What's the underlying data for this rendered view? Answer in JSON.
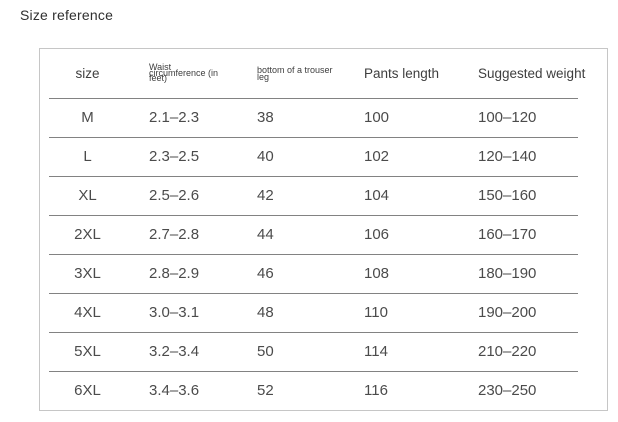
{
  "title": "Size reference",
  "chart_data": {
    "type": "table",
    "title": "Size reference",
    "columns": [
      "size",
      "Waist circumference (in feet)",
      "bottom of a trouser leg",
      "Pants length",
      "Suggested weight"
    ],
    "rows": [
      [
        "M",
        "2.1–2.3",
        "38",
        "100",
        "100–120"
      ],
      [
        "L",
        "2.3–2.5",
        "40",
        "102",
        "120–140"
      ],
      [
        "XL",
        "2.5–2.6",
        "42",
        "104",
        "150–160"
      ],
      [
        "2XL",
        "2.7–2.8",
        "44",
        "106",
        "160–170"
      ],
      [
        "3XL",
        "2.8–2.9",
        "46",
        "108",
        "180–190"
      ],
      [
        "4XL",
        "3.0–3.1",
        "48",
        "110",
        "190–200"
      ],
      [
        "5XL",
        "3.2–3.4",
        "50",
        "114",
        "210–220"
      ],
      [
        "6XL",
        "3.4–3.6",
        "52",
        "116",
        "230–250"
      ]
    ]
  },
  "header_wrap": {
    "waist_lines": [
      "Waist",
      "circumference (in",
      "feet)"
    ],
    "bottom_lines": [
      "bottom of a trouser",
      "leg"
    ]
  },
  "colors": {
    "bg": "#ffffff",
    "title": "#2f2f2f",
    "border": "#c6c6c6",
    "rule": "#828282",
    "header_text": "#3e3e3e",
    "data_text": "#4b4b4b"
  }
}
